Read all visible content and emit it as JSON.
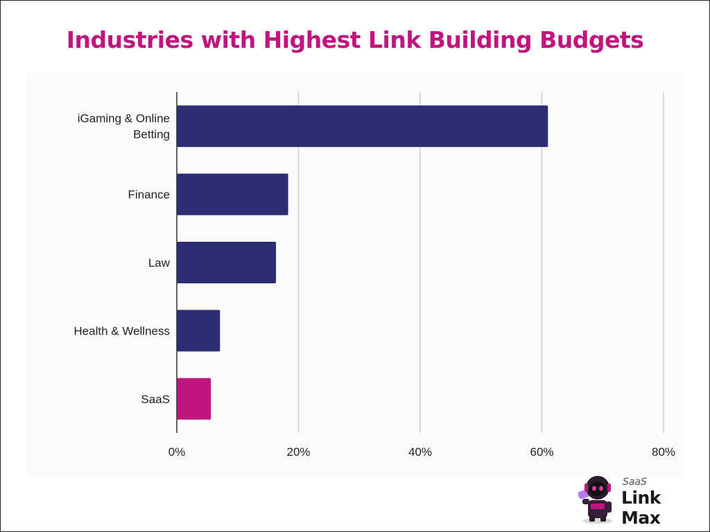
{
  "title": "Industries with Highest Link Building Budgets",
  "colors": {
    "title": "#c0157f",
    "bar_default": "#2d2d74",
    "bar_highlight": "#c0157f",
    "grid": "#cccccc",
    "axis": "#333333"
  },
  "chart_data": {
    "type": "bar",
    "orientation": "horizontal",
    "categories": [
      "iGaming & Online Betting",
      "Finance",
      "Law",
      "Health & Wellness",
      "SaaS"
    ],
    "category_label_lines": [
      [
        "iGaming & Online",
        "Betting"
      ],
      [
        "Finance"
      ],
      [
        "Law"
      ],
      [
        "Health & Wellness"
      ],
      [
        "SaaS"
      ]
    ],
    "values": [
      61,
      18.3,
      16.3,
      7.1,
      5.6
    ],
    "highlight": [
      "SaaS"
    ],
    "x_ticks": [
      0,
      20,
      40,
      60,
      80
    ],
    "x_tick_labels": [
      "0%",
      "20%",
      "40%",
      "60%",
      "80%"
    ],
    "xlim": [
      0,
      80
    ],
    "grid": true,
    "legend": "none"
  },
  "logo": {
    "small_text": "SaaS",
    "big_text": "Link Max",
    "icon": "robot-mascot-icon"
  }
}
